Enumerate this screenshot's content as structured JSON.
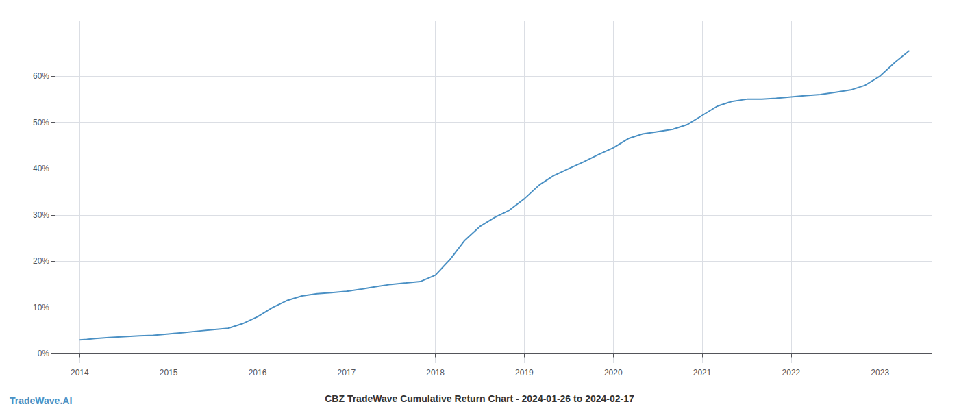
{
  "chart_data": {
    "type": "line",
    "title": "CBZ TradeWave Cumulative Return Chart - 2024-01-26 to 2024-02-17",
    "annotations": [
      "TradeWave.AI"
    ],
    "color": "#4a90c4",
    "x": [
      2014.0,
      2014.08,
      2014.17,
      2014.33,
      2014.5,
      2014.67,
      2014.83,
      2015.0,
      2015.17,
      2015.33,
      2015.5,
      2015.67,
      2015.83,
      2016.0,
      2016.17,
      2016.33,
      2016.5,
      2016.67,
      2016.83,
      2017.0,
      2017.17,
      2017.33,
      2017.5,
      2017.67,
      2017.83,
      2018.0,
      2018.17,
      2018.33,
      2018.5,
      2018.67,
      2018.83,
      2019.0,
      2019.17,
      2019.33,
      2019.5,
      2019.67,
      2019.83,
      2020.0,
      2020.17,
      2020.33,
      2020.5,
      2020.67,
      2020.83,
      2021.0,
      2021.17,
      2021.33,
      2021.5,
      2021.67,
      2021.83,
      2022.0,
      2022.17,
      2022.33,
      2022.5,
      2022.67,
      2022.83,
      2023.0,
      2023.17,
      2023.33
    ],
    "values": [
      3.0,
      3.1,
      3.3,
      3.5,
      3.7,
      3.9,
      4.0,
      4.3,
      4.6,
      4.9,
      5.2,
      5.5,
      6.5,
      8.0,
      10.0,
      11.5,
      12.5,
      13.0,
      13.2,
      13.5,
      14.0,
      14.5,
      15.0,
      15.3,
      15.6,
      17.0,
      20.5,
      24.5,
      27.5,
      29.5,
      31.0,
      33.5,
      36.5,
      38.5,
      40.0,
      41.5,
      43.0,
      44.5,
      46.5,
      47.5,
      48.0,
      48.5,
      49.5,
      51.5,
      53.5,
      54.5,
      55.0,
      55.0,
      55.2,
      55.5,
      55.8,
      56.0,
      56.5,
      57.0,
      58.0,
      60.0,
      63.0,
      65.5
    ],
    "xlim": [
      2013.72,
      2023.58
    ],
    "xticks": [
      2014,
      2015,
      2016,
      2017,
      2018,
      2019,
      2020,
      2021,
      2022,
      2023
    ],
    "ylim": [
      -2,
      72
    ],
    "yticks": [
      {
        "value": 0,
        "label": "0%"
      },
      {
        "value": 10,
        "label": "10%"
      },
      {
        "value": 20,
        "label": "20%"
      },
      {
        "value": 30,
        "label": "30%"
      },
      {
        "value": 40,
        "label": "40%"
      },
      {
        "value": 50,
        "label": "50%"
      },
      {
        "value": 60,
        "label": "60%"
      }
    ],
    "grid": true
  }
}
